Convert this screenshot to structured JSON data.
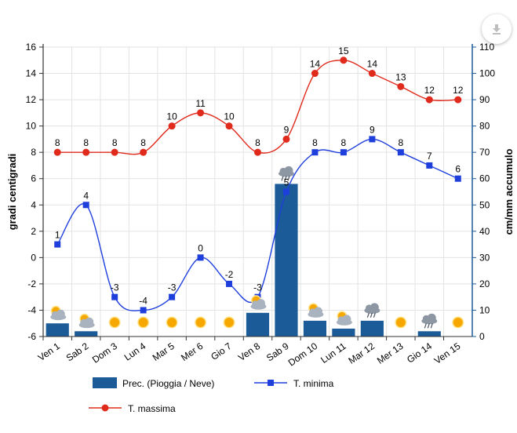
{
  "chart_data": {
    "type": "bar+line",
    "categories": [
      "Ven 1",
      "Sab 2",
      "Dom 3",
      "Lun 4",
      "Mar 5",
      "Mer 6",
      "Gio 7",
      "Ven 8",
      "Sab 9",
      "Dom 10",
      "Lun 11",
      "Mar 12",
      "Mer 13",
      "Gio 14",
      "Ven 15"
    ],
    "left_axis": {
      "label": "gradi centigradi",
      "min": -6,
      "max": 16,
      "step": 2
    },
    "right_axis": {
      "label": "cm/mm accumulo",
      "min": 0,
      "max": 110,
      "step": 10
    },
    "series": [
      {
        "name": "Prec. (Pioggia / Neve)",
        "type": "bar",
        "axis": "right",
        "color": "#1a5b98",
        "values": [
          5,
          2,
          0,
          0,
          0,
          0,
          0,
          9,
          58,
          6,
          3,
          6,
          0,
          2,
          0
        ]
      },
      {
        "name": "T. minima",
        "type": "line",
        "axis": "left",
        "color": "#1f3fdd",
        "marker": "square",
        "values": [
          1,
          4,
          -3,
          -4,
          -3,
          0,
          -2,
          -3,
          5,
          8,
          8,
          9,
          8,
          7,
          6
        ]
      },
      {
        "name": "T. massima",
        "type": "line",
        "axis": "left",
        "color": "#e02a1c",
        "marker": "circle",
        "values": [
          8,
          8,
          8,
          8,
          10,
          11,
          10,
          8,
          9,
          14,
          15,
          14,
          13,
          12,
          12
        ]
      }
    ],
    "weather_icons": [
      "sun-cloud",
      "sun-cloud",
      "sun",
      "sun",
      "sun",
      "sun",
      "sun",
      "sun-cloud",
      "cloud-rain",
      "sun-cloud",
      "sun-cloud",
      "cloud-rain",
      "sun",
      "cloud-rain",
      "sun"
    ],
    "grid": true,
    "legend_position": "bottom-left"
  },
  "ui": {
    "download_icon": "download-icon"
  }
}
